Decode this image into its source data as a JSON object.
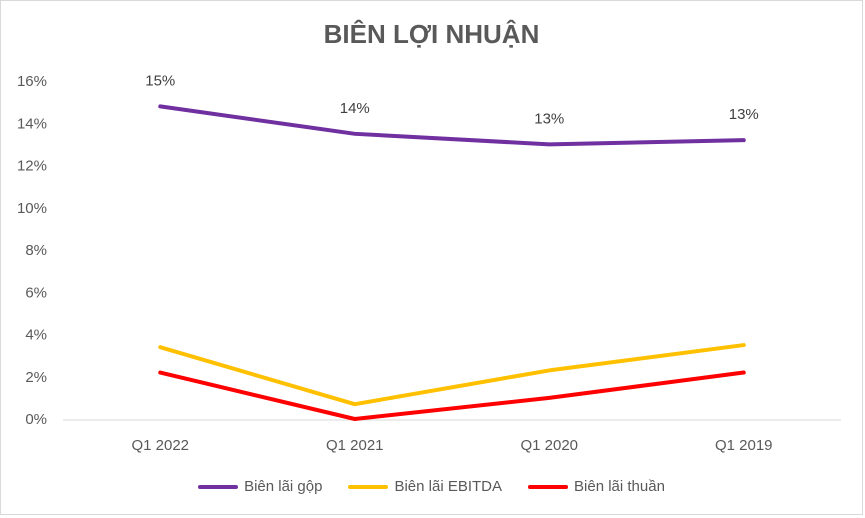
{
  "chart_data": {
    "type": "line",
    "title": "BIÊN LỢI NHUẬN",
    "categories": [
      "Q1 2022",
      "Q1 2021",
      "Q1 2020",
      "Q1 2019"
    ],
    "y_ticks": [
      "0%",
      "2%",
      "4%",
      "6%",
      "8%",
      "10%",
      "12%",
      "14%",
      "16%"
    ],
    "ylim": [
      0,
      16
    ],
    "grid": false,
    "legend_position": "bottom",
    "series": [
      {
        "name": "Biên lãi gộp",
        "color": "#7030a0",
        "values": [
          14.8,
          13.5,
          13.0,
          13.2
        ],
        "labels": [
          "15%",
          "14%",
          "13%",
          "13%"
        ]
      },
      {
        "name": "Biên lãi EBITDA",
        "color": "#ffc000",
        "values": [
          3.4,
          0.7,
          2.3,
          3.5
        ]
      },
      {
        "name": "Biên lãi thuần",
        "color": "#ff0000",
        "values": [
          2.2,
          0.0,
          1.0,
          2.2
        ]
      }
    ]
  }
}
